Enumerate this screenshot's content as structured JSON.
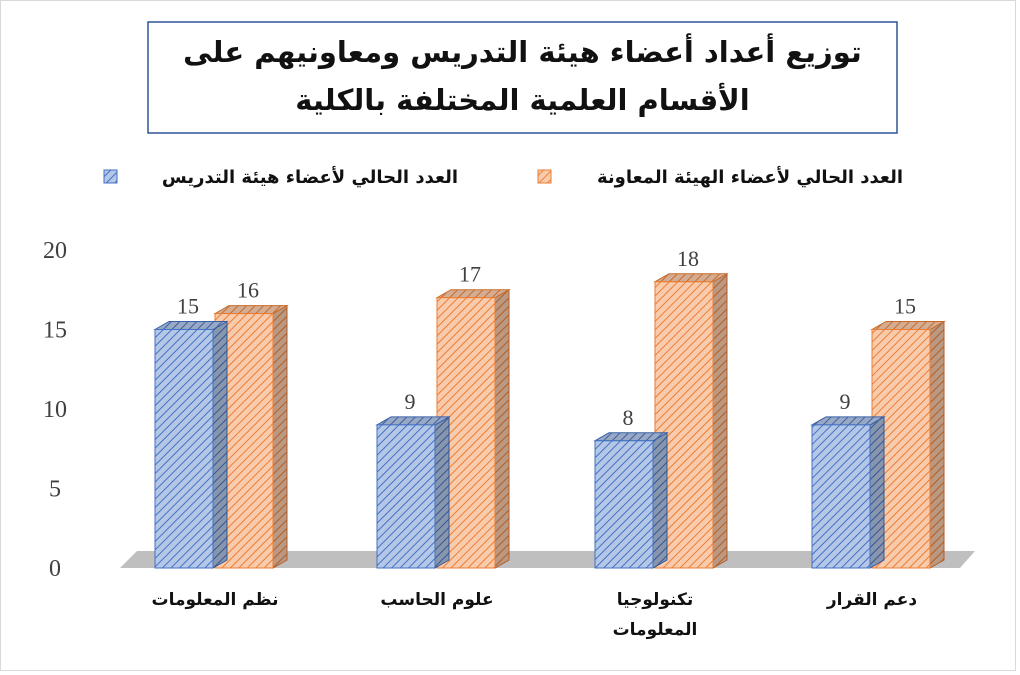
{
  "chart_data": {
    "type": "bar3d",
    "title": "توزيع أعداد أعضاء هيئة التدريس ومعاونيهم على الأقسام العلمية المختلفة بالكلية",
    "categories": [
      "دعم القرار",
      "تكنولوجيا المعلومات",
      "علوم الحاسب",
      "نظم المعلومات"
    ],
    "series": [
      {
        "name": "العدد الحالي لأعضاء الهيئة المعاونة",
        "color": "#ed7d31",
        "values": [
          15,
          18,
          17,
          16
        ]
      },
      {
        "name": "العدد الحالي لأعضاء هيئة التدريس",
        "color": "#4472c4",
        "values": [
          9,
          8,
          9,
          15
        ]
      }
    ],
    "ylim": [
      0,
      20
    ],
    "yticks": [
      0,
      5,
      10,
      15,
      20
    ],
    "grid": false,
    "legend": "top"
  }
}
